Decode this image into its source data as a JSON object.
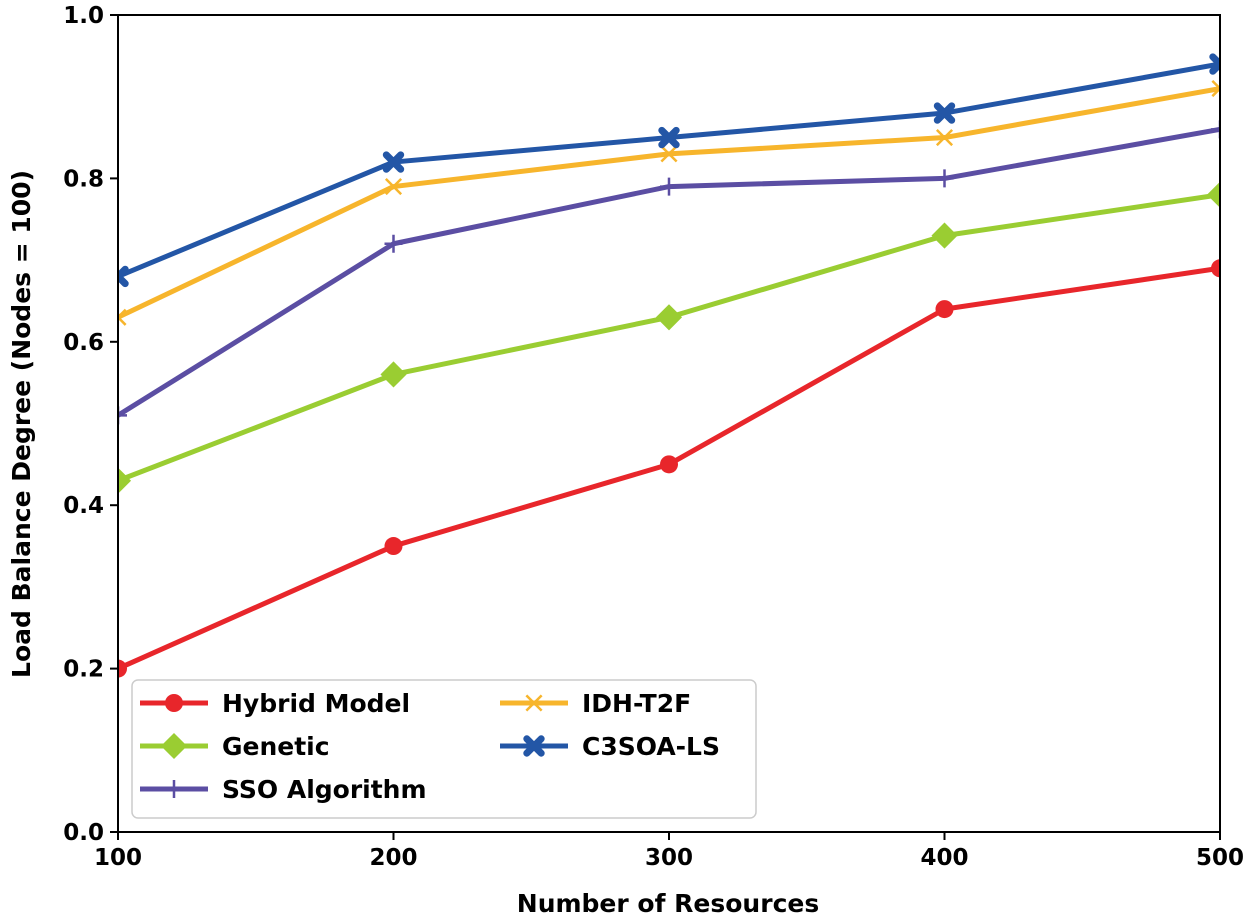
{
  "chart_data": {
    "type": "line",
    "title": "",
    "xlabel": "Number of Resources",
    "ylabel": "Load Balance Degree (Nodes = 100)",
    "x": [
      100,
      200,
      300,
      400,
      500
    ],
    "xlim": [
      100,
      500
    ],
    "ylim": [
      0.0,
      1.0
    ],
    "xticks": [
      "100",
      "200",
      "300",
      "400",
      "500"
    ],
    "yticks": [
      "0.0",
      "0.2",
      "0.4",
      "0.6",
      "0.8",
      "1.0"
    ],
    "grid": false,
    "legend_position": "lower-left",
    "series": [
      {
        "name": "Hybrid Model",
        "color": "#e8262b",
        "marker": "circle",
        "values": [
          0.2,
          0.35,
          0.45,
          0.64,
          0.69
        ]
      },
      {
        "name": "Genetic",
        "color": "#9acd32",
        "marker": "diamond",
        "values": [
          0.43,
          0.56,
          0.63,
          0.73,
          0.78
        ]
      },
      {
        "name": "SSO Algorithm",
        "color": "#5b4ea3",
        "marker": "plus",
        "values": [
          0.51,
          0.72,
          0.79,
          0.8,
          0.86
        ]
      },
      {
        "name": "IDH-T2F",
        "color": "#f7b52c",
        "marker": "x",
        "values": [
          0.63,
          0.79,
          0.83,
          0.85,
          0.91
        ]
      },
      {
        "name": "C3SOA-LS",
        "color": "#2356a6",
        "marker": "x-filled",
        "values": [
          0.68,
          0.82,
          0.85,
          0.88,
          0.94
        ]
      }
    ]
  }
}
